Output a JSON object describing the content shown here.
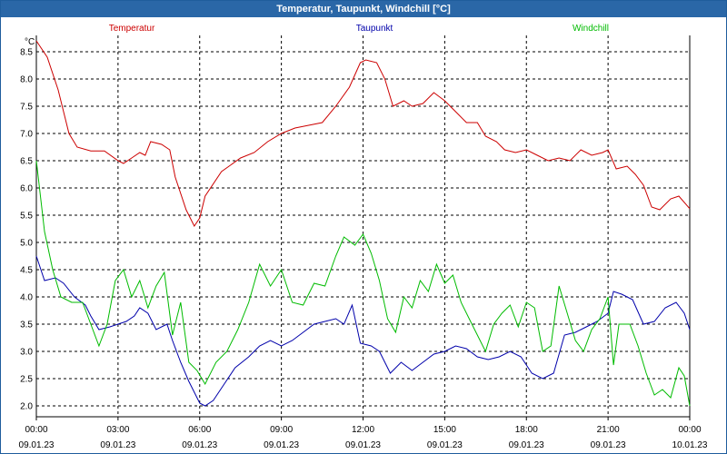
{
  "window": {
    "title": "Temperatur, Taupunkt, Windchill [°C]"
  },
  "colors": {
    "temperature": "#cc0000",
    "dewpoint": "#0000aa",
    "windchill": "#00bb00",
    "titlebar": "#2a67a7"
  },
  "chart_data": {
    "type": "line",
    "ylabel": "°C",
    "ylim": [
      1.8,
      8.8
    ],
    "xlim": [
      0,
      24
    ],
    "grid": true,
    "legend_placement": "top",
    "yticks": [
      2.0,
      2.5,
      3.0,
      3.5,
      4.0,
      4.5,
      5.0,
      5.5,
      6.0,
      6.5,
      7.0,
      7.5,
      8.0,
      8.5
    ],
    "yticks_labels": [
      "2.0",
      "2.5",
      "3.0",
      "3.5",
      "4.0",
      "4.5",
      "5.0",
      "5.5",
      "6.0",
      "6.5",
      "7.0",
      "7.5",
      "8.0",
      "8.5"
    ],
    "xticks": [
      {
        "time": "00:00",
        "date": "09.01.23"
      },
      {
        "time": "03:00",
        "date": "09.01.23"
      },
      {
        "time": "06:00",
        "date": "09.01.23"
      },
      {
        "time": "09:00",
        "date": "09.01.23"
      },
      {
        "time": "12:00",
        "date": "09.01.23"
      },
      {
        "time": "15:00",
        "date": "09.01.23"
      },
      {
        "time": "18:00",
        "date": "09.01.23"
      },
      {
        "time": "21:00",
        "date": "09.01.23"
      },
      {
        "time": "00:00",
        "date": "10.01.23"
      }
    ],
    "series": [
      {
        "name": "Temperatur",
        "color": "#cc0000",
        "points": [
          [
            0,
            8.7
          ],
          [
            0.4,
            8.4
          ],
          [
            0.8,
            7.8
          ],
          [
            1.2,
            7.0
          ],
          [
            1.5,
            6.75
          ],
          [
            2.0,
            6.68
          ],
          [
            2.5,
            6.68
          ],
          [
            3.0,
            6.5
          ],
          [
            3.2,
            6.45
          ],
          [
            3.5,
            6.55
          ],
          [
            3.8,
            6.65
          ],
          [
            4.0,
            6.6
          ],
          [
            4.2,
            6.85
          ],
          [
            4.6,
            6.8
          ],
          [
            4.9,
            6.7
          ],
          [
            5.1,
            6.2
          ],
          [
            5.5,
            5.6
          ],
          [
            5.8,
            5.3
          ],
          [
            6.0,
            5.45
          ],
          [
            6.2,
            5.85
          ],
          [
            6.8,
            6.3
          ],
          [
            7.5,
            6.55
          ],
          [
            8.0,
            6.65
          ],
          [
            8.5,
            6.85
          ],
          [
            9.0,
            7.0
          ],
          [
            9.5,
            7.1
          ],
          [
            10.0,
            7.15
          ],
          [
            10.5,
            7.2
          ],
          [
            11.0,
            7.5
          ],
          [
            11.5,
            7.85
          ],
          [
            11.9,
            8.3
          ],
          [
            12.1,
            8.35
          ],
          [
            12.5,
            8.3
          ],
          [
            12.8,
            8.0
          ],
          [
            13.1,
            7.5
          ],
          [
            13.5,
            7.6
          ],
          [
            13.8,
            7.5
          ],
          [
            14.2,
            7.55
          ],
          [
            14.6,
            7.75
          ],
          [
            15.0,
            7.6
          ],
          [
            15.4,
            7.4
          ],
          [
            15.8,
            7.2
          ],
          [
            16.2,
            7.2
          ],
          [
            16.5,
            6.95
          ],
          [
            16.9,
            6.85
          ],
          [
            17.2,
            6.7
          ],
          [
            17.6,
            6.65
          ],
          [
            18.0,
            6.7
          ],
          [
            18.4,
            6.6
          ],
          [
            18.8,
            6.5
          ],
          [
            19.2,
            6.55
          ],
          [
            19.6,
            6.5
          ],
          [
            20.0,
            6.7
          ],
          [
            20.4,
            6.6
          ],
          [
            20.8,
            6.65
          ],
          [
            21.0,
            6.7
          ],
          [
            21.3,
            6.35
          ],
          [
            21.7,
            6.4
          ],
          [
            22.0,
            6.25
          ],
          [
            22.3,
            6.05
          ],
          [
            22.6,
            5.65
          ],
          [
            22.9,
            5.6
          ],
          [
            23.3,
            5.8
          ],
          [
            23.6,
            5.85
          ],
          [
            24.0,
            5.62
          ]
        ]
      },
      {
        "name": "Taupunkt",
        "color": "#0000aa",
        "points": [
          [
            0,
            4.75
          ],
          [
            0.3,
            4.3
          ],
          [
            0.7,
            4.35
          ],
          [
            1.0,
            4.25
          ],
          [
            1.4,
            4.0
          ],
          [
            1.8,
            3.85
          ],
          [
            2.0,
            3.65
          ],
          [
            2.3,
            3.4
          ],
          [
            2.7,
            3.45
          ],
          [
            3.0,
            3.5
          ],
          [
            3.3,
            3.55
          ],
          [
            3.6,
            3.65
          ],
          [
            3.8,
            3.8
          ],
          [
            4.1,
            3.7
          ],
          [
            4.4,
            3.4
          ],
          [
            4.8,
            3.5
          ],
          [
            5.0,
            3.2
          ],
          [
            5.3,
            2.8
          ],
          [
            5.6,
            2.45
          ],
          [
            6.0,
            2.05
          ],
          [
            6.2,
            2.0
          ],
          [
            6.5,
            2.1
          ],
          [
            6.9,
            2.4
          ],
          [
            7.3,
            2.7
          ],
          [
            7.8,
            2.9
          ],
          [
            8.2,
            3.1
          ],
          [
            8.6,
            3.2
          ],
          [
            9.0,
            3.1
          ],
          [
            9.4,
            3.2
          ],
          [
            9.8,
            3.35
          ],
          [
            10.2,
            3.5
          ],
          [
            10.6,
            3.55
          ],
          [
            11.0,
            3.6
          ],
          [
            11.3,
            3.5
          ],
          [
            11.6,
            3.85
          ],
          [
            11.9,
            3.15
          ],
          [
            12.3,
            3.1
          ],
          [
            12.6,
            3.0
          ],
          [
            13.0,
            2.6
          ],
          [
            13.4,
            2.8
          ],
          [
            13.8,
            2.65
          ],
          [
            14.2,
            2.8
          ],
          [
            14.6,
            2.95
          ],
          [
            15.0,
            3.0
          ],
          [
            15.4,
            3.1
          ],
          [
            15.8,
            3.05
          ],
          [
            16.2,
            2.9
          ],
          [
            16.6,
            2.85
          ],
          [
            17.0,
            2.9
          ],
          [
            17.4,
            3.0
          ],
          [
            17.8,
            2.9
          ],
          [
            18.2,
            2.6
          ],
          [
            18.6,
            2.5
          ],
          [
            19.0,
            2.6
          ],
          [
            19.4,
            3.3
          ],
          [
            19.8,
            3.35
          ],
          [
            20.2,
            3.45
          ],
          [
            20.6,
            3.55
          ],
          [
            21.0,
            3.7
          ],
          [
            21.2,
            4.1
          ],
          [
            21.5,
            4.05
          ],
          [
            21.9,
            3.95
          ],
          [
            22.3,
            3.5
          ],
          [
            22.7,
            3.55
          ],
          [
            23.1,
            3.8
          ],
          [
            23.5,
            3.9
          ],
          [
            23.8,
            3.7
          ],
          [
            24.0,
            3.4
          ]
        ]
      },
      {
        "name": "Windchill",
        "color": "#00bb00",
        "points": [
          [
            0,
            6.5
          ],
          [
            0.3,
            5.2
          ],
          [
            0.6,
            4.5
          ],
          [
            0.9,
            4.0
          ],
          [
            1.3,
            3.9
          ],
          [
            1.7,
            3.9
          ],
          [
            2.0,
            3.5
          ],
          [
            2.3,
            3.1
          ],
          [
            2.6,
            3.5
          ],
          [
            2.9,
            4.3
          ],
          [
            3.2,
            4.5
          ],
          [
            3.5,
            4.0
          ],
          [
            3.8,
            4.3
          ],
          [
            4.1,
            3.8
          ],
          [
            4.4,
            4.2
          ],
          [
            4.7,
            4.45
          ],
          [
            5.0,
            3.3
          ],
          [
            5.3,
            3.9
          ],
          [
            5.6,
            2.8
          ],
          [
            5.9,
            2.65
          ],
          [
            6.2,
            2.4
          ],
          [
            6.6,
            2.8
          ],
          [
            7.0,
            3.0
          ],
          [
            7.4,
            3.4
          ],
          [
            7.8,
            3.9
          ],
          [
            8.2,
            4.6
          ],
          [
            8.6,
            4.2
          ],
          [
            9.0,
            4.5
          ],
          [
            9.4,
            3.9
          ],
          [
            9.8,
            3.85
          ],
          [
            10.2,
            4.25
          ],
          [
            10.6,
            4.2
          ],
          [
            11.0,
            4.75
          ],
          [
            11.3,
            5.1
          ],
          [
            11.7,
            4.95
          ],
          [
            12.0,
            5.15
          ],
          [
            12.3,
            4.8
          ],
          [
            12.6,
            4.3
          ],
          [
            12.9,
            3.6
          ],
          [
            13.2,
            3.35
          ],
          [
            13.5,
            4.0
          ],
          [
            13.8,
            3.8
          ],
          [
            14.1,
            4.3
          ],
          [
            14.4,
            4.1
          ],
          [
            14.7,
            4.6
          ],
          [
            15.0,
            4.25
          ],
          [
            15.3,
            4.4
          ],
          [
            15.6,
            3.9
          ],
          [
            15.9,
            3.6
          ],
          [
            16.2,
            3.3
          ],
          [
            16.5,
            3.0
          ],
          [
            16.8,
            3.5
          ],
          [
            17.1,
            3.7
          ],
          [
            17.4,
            3.85
          ],
          [
            17.7,
            3.45
          ],
          [
            18.0,
            3.9
          ],
          [
            18.3,
            3.8
          ],
          [
            18.6,
            3.0
          ],
          [
            18.9,
            3.1
          ],
          [
            19.2,
            4.2
          ],
          [
            19.5,
            3.7
          ],
          [
            19.8,
            3.2
          ],
          [
            20.1,
            3.0
          ],
          [
            20.4,
            3.4
          ],
          [
            20.7,
            3.6
          ],
          [
            21.0,
            4.0
          ],
          [
            21.2,
            2.75
          ],
          [
            21.4,
            3.5
          ],
          [
            21.8,
            3.5
          ],
          [
            22.1,
            3.1
          ],
          [
            22.4,
            2.6
          ],
          [
            22.7,
            2.2
          ],
          [
            23.0,
            2.3
          ],
          [
            23.3,
            2.15
          ],
          [
            23.6,
            2.7
          ],
          [
            23.8,
            2.55
          ],
          [
            24.0,
            2.0
          ]
        ]
      }
    ]
  }
}
